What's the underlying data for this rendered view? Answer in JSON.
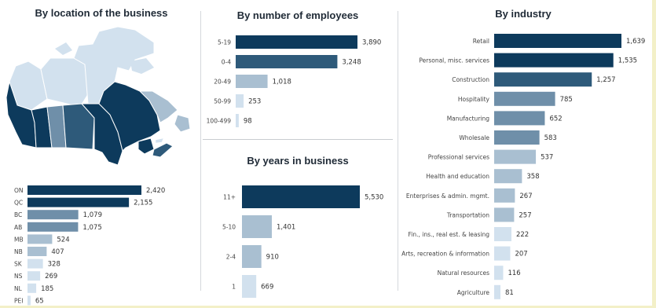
{
  "colors": {
    "level1": "#0d3a5c",
    "level2": "#2e5a7a",
    "level3": "#6f8fa9",
    "level4": "#a9bfd1",
    "level5": "#d2e1ee"
  },
  "chart_data": [
    {
      "type": "bar",
      "orientation": "horizontal",
      "title": "By location of the business",
      "categories": [
        "ON",
        "QC",
        "BC",
        "AB",
        "MB",
        "NB",
        "SK",
        "NS",
        "NL",
        "PEI"
      ],
      "values": [
        2420,
        2155,
        1079,
        1075,
        524,
        407,
        328,
        269,
        185,
        65
      ],
      "value_labels": [
        "2,420",
        "2,155",
        "1,079",
        "1,075",
        "524",
        "407",
        "328",
        "269",
        "185",
        "65"
      ],
      "map": "Canada choropleth by province (shading follows values)"
    },
    {
      "type": "bar",
      "orientation": "horizontal",
      "title": "By number of employees",
      "categories": [
        "5-19",
        "0-4",
        "20-49",
        "50-99",
        "100-499"
      ],
      "values": [
        3890,
        3248,
        1018,
        253,
        98
      ],
      "value_labels": [
        "3,890",
        "3,248",
        "1,018",
        "253",
        "98"
      ]
    },
    {
      "type": "bar",
      "orientation": "horizontal",
      "title": "By years in business",
      "categories": [
        "11+",
        "5-10",
        "2-4",
        "1"
      ],
      "values": [
        5530,
        1401,
        910,
        669
      ],
      "value_labels": [
        "5,530",
        "1,401",
        "910",
        "669"
      ]
    },
    {
      "type": "bar",
      "orientation": "horizontal",
      "title": "By industry",
      "categories": [
        "Retail",
        "Personal, misc. services",
        "Construction",
        "Hospitality",
        "Manufacturing",
        "Wholesale",
        "Professional services",
        "Health and education",
        "Enterprises & admin. mgmt.",
        "Transportation",
        "Fin., ins., real est. & leasing",
        "Arts, recreation & information",
        "Natural resources",
        "Agriculture"
      ],
      "values": [
        1639,
        1535,
        1257,
        785,
        652,
        583,
        537,
        358,
        267,
        257,
        222,
        207,
        116,
        81
      ],
      "value_labels": [
        "1,639",
        "1,535",
        "1,257",
        "785",
        "652",
        "583",
        "537",
        "358",
        "267",
        "257",
        "222",
        "207",
        "116",
        "81"
      ]
    }
  ]
}
